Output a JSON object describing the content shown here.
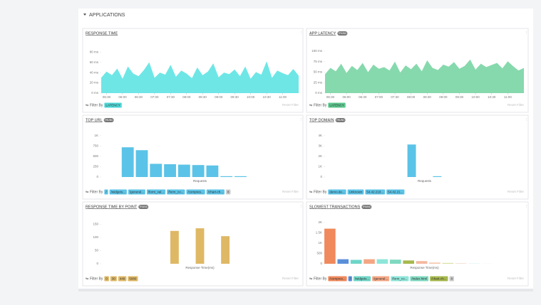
{
  "section": {
    "title": "APPLICATIONS"
  },
  "chart_data": [
    {
      "type": "area",
      "title": "RESPONSE TIME",
      "color": "#6ee6e6",
      "x": [
        320,
        330,
        340,
        350,
        360,
        370,
        380,
        390,
        400,
        410,
        420,
        430,
        440,
        450,
        460,
        470,
        480,
        490,
        500,
        510,
        520,
        530,
        540,
        550,
        560,
        570,
        580,
        590,
        600,
        610,
        620,
        630,
        640,
        650,
        660,
        670,
        680,
        690
      ],
      "values": [
        30,
        42,
        35,
        48,
        28,
        52,
        38,
        33,
        45,
        60,
        30,
        40,
        36,
        55,
        32,
        44,
        38,
        29,
        50,
        35,
        42,
        58,
        31,
        40,
        37,
        46,
        33,
        52,
        28,
        41,
        36,
        62,
        30,
        44,
        39,
        35,
        47,
        34
      ],
      "xlim": [
        320,
        690
      ],
      "ylim": [
        0,
        90
      ],
      "xticks": [
        {
          "value": 330,
          "label": "05:30"
        },
        {
          "value": 360,
          "label": "06:00"
        },
        {
          "value": 390,
          "label": "06:30"
        },
        {
          "value": 420,
          "label": "07:00"
        },
        {
          "value": 450,
          "label": "07:30"
        },
        {
          "value": 480,
          "label": "08:00"
        },
        {
          "value": 510,
          "label": "08:30"
        },
        {
          "value": 540,
          "label": "09:00"
        },
        {
          "value": 570,
          "label": "09:30"
        },
        {
          "value": 600,
          "label": "10:00"
        },
        {
          "value": 630,
          "label": "10:30"
        },
        {
          "value": 660,
          "label": "11:00"
        }
      ],
      "yticks": [
        {
          "value": 0,
          "label": "0 ms"
        },
        {
          "value": 20,
          "label": "20 ms"
        },
        {
          "value": 40,
          "label": "40 ms"
        },
        {
          "value": 60,
          "label": "60 ms"
        },
        {
          "value": 80,
          "label": "80 ms"
        }
      ],
      "filter_label": "Filter By",
      "chips": [
        {
          "label": "LATENCY",
          "color": "#4fd8d8"
        }
      ],
      "reset": "Reset Filter"
    },
    {
      "type": "area",
      "title": "APP LATENCY",
      "badge": "TRUNC",
      "color": "#86d9ad",
      "x": [
        320,
        330,
        340,
        350,
        360,
        370,
        380,
        390,
        400,
        410,
        420,
        430,
        440,
        450,
        460,
        470,
        480,
        490,
        500,
        510,
        520,
        530,
        540,
        550,
        560,
        570,
        580,
        590,
        600,
        610,
        620,
        630,
        640,
        650,
        660,
        670,
        680,
        690
      ],
      "values": [
        45,
        60,
        52,
        70,
        48,
        65,
        55,
        72,
        50,
        68,
        58,
        62,
        54,
        75,
        49,
        66,
        57,
        70,
        52,
        78,
        60,
        55,
        68,
        63,
        74,
        58,
        65,
        80,
        56,
        70,
        62,
        67,
        72,
        59,
        76,
        64,
        54,
        60
      ],
      "xlim": [
        320,
        690
      ],
      "ylim": [
        0,
        110
      ],
      "xticks": [
        {
          "value": 330,
          "label": "05:30"
        },
        {
          "value": 360,
          "label": "06:00"
        },
        {
          "value": 390,
          "label": "06:30"
        },
        {
          "value": 420,
          "label": "07:00"
        },
        {
          "value": 450,
          "label": "07:30"
        },
        {
          "value": 480,
          "label": "08:00"
        },
        {
          "value": 510,
          "label": "08:30"
        },
        {
          "value": 540,
          "label": "09:00"
        },
        {
          "value": 570,
          "label": "09:30"
        },
        {
          "value": 600,
          "label": "10:00"
        },
        {
          "value": 630,
          "label": "10:30"
        },
        {
          "value": 660,
          "label": "11:00"
        }
      ],
      "yticks": [
        {
          "value": 0,
          "label": "0 ms"
        },
        {
          "value": 25,
          "label": "25 ms"
        },
        {
          "value": 50,
          "label": "50 ms"
        },
        {
          "value": 75,
          "label": "75 ms"
        },
        {
          "value": 100,
          "label": "100 ms"
        }
      ],
      "filter_label": "Filter By",
      "chips": [
        {
          "label": "LATENCY",
          "color": "#5cc98e"
        }
      ],
      "reset": "Reset Filter"
    },
    {
      "type": "bar",
      "title": "TOP URL",
      "badge": "TRUNC",
      "colors": [
        "#5bc3e7"
      ],
      "values": [
        720,
        650,
        320,
        310,
        300,
        290,
        280,
        20,
        20
      ],
      "ylim": [
        0,
        1050
      ],
      "yticks": [
        0,
        250,
        500,
        750,
        {
          "value": 1000,
          "label": "1K"
        }
      ],
      "x_label": "Requests",
      "filter_label": "Filter By",
      "chips": [
        {
          "label": "/",
          "color": "#5bc3e7"
        },
        {
          "label": "/widgets...",
          "color": "#5bc3e7"
        },
        {
          "label": "/general...",
          "color": "#5bc3e7"
        },
        {
          "label": "/form_val...",
          "color": "#5bc3e7"
        },
        {
          "label": "/form_co...",
          "color": "#5bc3e7"
        },
        {
          "label": "/compres...",
          "color": "#5bc3e7"
        },
        {
          "label": "/chart-ch...",
          "color": "#5bc3e7"
        },
        {
          "label": "8",
          "color": "#cccccc"
        }
      ],
      "reset": "Reset Filter"
    },
    {
      "type": "bar",
      "title": "TOP DOMAIN",
      "badge": "TRUNC",
      "colors": [
        "#5bc3e7"
      ],
      "values": [
        3150,
        80
      ],
      "ylim": [
        0,
        4200
      ],
      "yticks": [
        0,
        {
          "value": 1000,
          "label": "1K"
        },
        {
          "value": 2000,
          "label": "2K"
        },
        {
          "value": 3000,
          "label": "3K"
        },
        {
          "value": 4000,
          "label": "4K"
        }
      ],
      "x_label": "Requests",
      "filter_label": "Filter By",
      "chips": [
        {
          "label": "demo.de...",
          "color": "#5bc3e7"
        },
        {
          "label": "Unknown",
          "color": "#5bc3e7"
        },
        {
          "label": "54.42.218...",
          "color": "#5bc3e7"
        },
        {
          "label": "54.42.21...",
          "color": "#5bc3e7"
        }
      ],
      "reset": "Reset Filter"
    },
    {
      "type": "bar",
      "title": "RESPONSE TIME BY POINT",
      "badge": "TRUNC",
      "colors": [
        "#dfb865"
      ],
      "values": [
        125,
        135,
        105
      ],
      "ylim": [
        0,
        165
      ],
      "yticks": [
        0,
        50,
        100,
        150
      ],
      "x_label": "Response Time(ms)",
      "filter_label": "Filter By",
      "chips": [
        {
          "label": "0",
          "color": "#dfb865"
        },
        {
          "label": "30",
          "color": "#dfb865"
        },
        {
          "label": "449",
          "color": "#dfb865"
        },
        {
          "label": "5080",
          "color": "#dfb865"
        }
      ],
      "reset": "Reset Filter"
    },
    {
      "type": "bar",
      "title": "SLOWEST TRANSACTIONS",
      "badge": "TRUNC",
      "colors": [
        "#f0895c",
        "#5b8fd9",
        "#6fd6c8",
        "#f4a784",
        "#8ee6da",
        "#7fd9c0",
        "#a6b84c",
        "#f5b8a0",
        "#f6c8b0",
        "#d9e0a0",
        "#f0d0c0",
        "#c0e8e0",
        "#e0e0e0"
      ],
      "values": [
        1700,
        220,
        190,
        220,
        220,
        200,
        160,
        130,
        60,
        40,
        20,
        10,
        5
      ],
      "ylim": [
        0,
        2100
      ],
      "yticks": [
        0,
        500,
        {
          "value": 1000,
          "label": "1K"
        },
        {
          "value": 1500,
          "label": "1.5K"
        },
        {
          "value": 2000,
          "label": "2K"
        }
      ],
      "x_label": "Response Time(ms)",
      "filter_label": "Filter By",
      "chips": [
        {
          "label": "/compres...",
          "color": "#f0895c"
        },
        {
          "label": "/",
          "color": "#5b8fd9"
        },
        {
          "label": "/widgets...",
          "color": "#6fd6c8"
        },
        {
          "label": "/general...",
          "color": "#f4a784"
        },
        {
          "label": "/form_co...",
          "color": "#8ee6da"
        },
        {
          "label": "/index.html",
          "color": "#7fd9c0"
        },
        {
          "label": "/chart-ch...",
          "color": "#a6b84c"
        },
        {
          "label": "8",
          "color": "#cccccc"
        }
      ],
      "reset": "Reset Filter"
    }
  ]
}
